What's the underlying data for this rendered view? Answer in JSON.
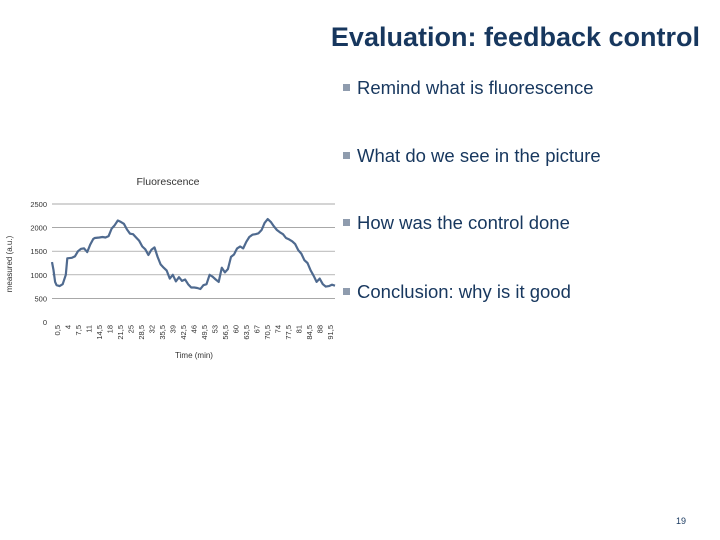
{
  "slide": {
    "title": "Evaluation: feedback control",
    "bullets": [
      "Remind what is fluorescence",
      "What do we see in the picture",
      "How was the control done",
      "Conclusion: why is it good"
    ],
    "page_number": "19"
  },
  "colors": {
    "title": "#17375e",
    "bullet_mark": "#8f9cae",
    "series_line": "#4f6a8f",
    "gridline": "#8c8c8c"
  },
  "chart_data": {
    "type": "line",
    "title": "Fluorescence",
    "xlabel": "Time (min)",
    "ylabel": "measured (a.u.)",
    "ylim": [
      0,
      2500
    ],
    "y_ticks": [
      0,
      500,
      1000,
      1500,
      2000,
      2500
    ],
    "grid": "horizontal",
    "legend": "none",
    "x_ticks": [
      "0,5",
      "4",
      "7,5",
      "11",
      "14,5",
      "18",
      "21,5",
      "25",
      "28,5",
      "32",
      "35,5",
      "39",
      "42,5",
      "46",
      "49,5",
      "53",
      "56,5",
      "60",
      "63,5",
      "67",
      "70,5",
      "74",
      "77,5",
      "81",
      "84,5",
      "88",
      "91,5"
    ],
    "series": [
      {
        "x": [
          0.5,
          1,
          1.5,
          2,
          3,
          4,
          5,
          5.5,
          7,
          8,
          9,
          10,
          11,
          12,
          13,
          14,
          14.5,
          16,
          17,
          18,
          19,
          20,
          21,
          22,
          23,
          24,
          25,
          26,
          27,
          28,
          29,
          30,
          31,
          32,
          33,
          34,
          35,
          36,
          37,
          38,
          39,
          40,
          41,
          42,
          43,
          44,
          45,
          46,
          47,
          48,
          49,
          50,
          51,
          52,
          53,
          54,
          55,
          56,
          57,
          58,
          59,
          60,
          61,
          62,
          63,
          64,
          65,
          66,
          67,
          68,
          69,
          70,
          71,
          72,
          73,
          74,
          75,
          76,
          77,
          78,
          79,
          80,
          81,
          82,
          83,
          84,
          85,
          86,
          87,
          88,
          89,
          90,
          91,
          92,
          93
        ],
        "y": [
          1270,
          1100,
          850,
          780,
          760,
          800,
          1000,
          1350,
          1360,
          1390,
          1500,
          1550,
          1560,
          1480,
          1640,
          1760,
          1780,
          1790,
          1800,
          1790,
          1820,
          1980,
          2050,
          2150,
          2120,
          2080,
          1960,
          1870,
          1860,
          1790,
          1720,
          1600,
          1540,
          1420,
          1530,
          1580,
          1380,
          1220,
          1150,
          1090,
          920,
          1000,
          860,
          950,
          870,
          900,
          800,
          730,
          730,
          720,
          700,
          780,
          800,
          1000,
          960,
          900,
          850,
          1150,
          1050,
          1120,
          1380,
          1430,
          1560,
          1600,
          1560,
          1700,
          1800,
          1850,
          1860,
          1880,
          1950,
          2100,
          2180,
          2120,
          2030,
          1950,
          1900,
          1860,
          1780,
          1750,
          1710,
          1650,
          1520,
          1450,
          1310,
          1250,
          1100,
          980,
          850,
          920,
          800,
          750,
          760,
          790,
          770
        ]
      }
    ]
  }
}
